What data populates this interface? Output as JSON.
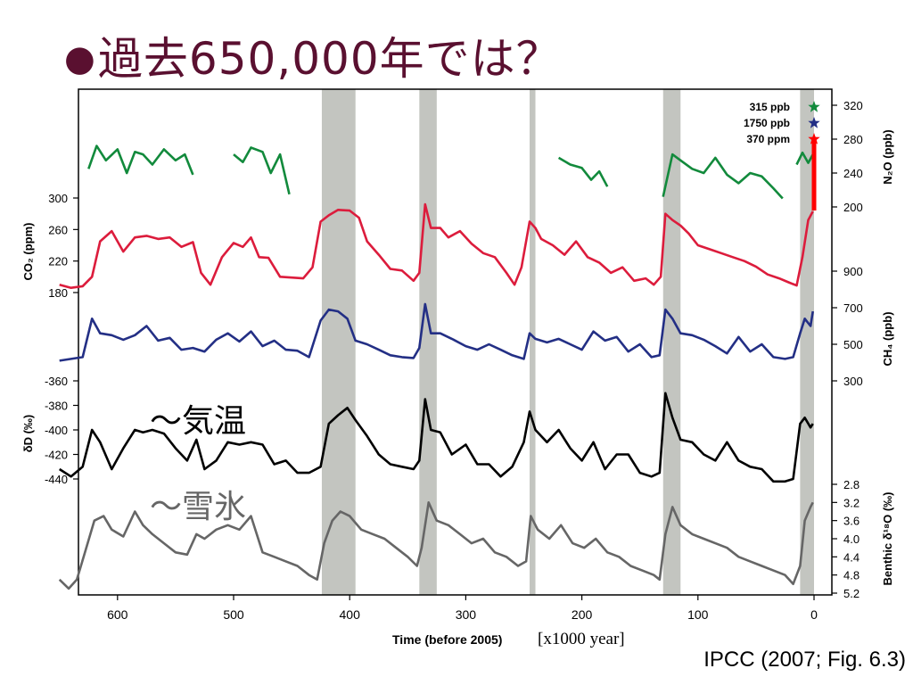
{
  "slide": {
    "bullet": "●",
    "title": "過去650,000年では？",
    "citation": "IPCC (2007; Fig. 6.3)",
    "annotation_temperature": "～気温",
    "annotation_ice": "～雪氷"
  },
  "colors": {
    "title": "#5a1030",
    "n2o": "#128a3c",
    "co2": "#dc1c3c",
    "ch4": "#232f85",
    "dD": "#000000",
    "d18O": "#666666",
    "interglacial_band": "#c3c5c0",
    "modern_marker": "#ff0000"
  },
  "chart_data": {
    "type": "line",
    "x_axis": {
      "label": "Time (before 2005)",
      "unit_note": "[x1000 year]",
      "range": [
        650,
        0
      ],
      "ticks": [
        "600",
        "500",
        "400",
        "300",
        "200",
        "100",
        "0"
      ]
    },
    "interglacial_bands_kyr": [
      [
        424,
        395
      ],
      [
        340,
        325
      ],
      [
        245,
        240
      ],
      [
        130,
        115
      ],
      [
        12,
        0
      ]
    ],
    "modern_values": [
      {
        "label": "315 ppb",
        "series": "N2O",
        "color": "#128a3c"
      },
      {
        "label": "1750 ppb",
        "series": "CH4",
        "color": "#232f85"
      },
      {
        "label": "370 ppm",
        "series": "CO2",
        "color": "#ff0000"
      }
    ],
    "series": [
      {
        "name": "N2O",
        "axis_label": "N₂O (ppb)",
        "axis_side": "right",
        "ticks": [
          "320",
          "280",
          "240",
          "200"
        ],
        "ylim": [
          200,
          320
        ],
        "segments": [
          {
            "x": [
              625,
              618,
              610,
              600,
              592,
              585,
              578,
              570,
              560,
              550,
              542,
              535
            ],
            "y": [
              245,
              272,
              255,
              268,
              240,
              265,
              262,
              250,
              268,
              255,
              262,
              238
            ]
          },
          {
            "x": [
              500,
              492,
              485,
              475,
              468,
              460,
              452
            ],
            "y": [
              262,
              253,
              270,
              265,
              240,
              262,
              215
            ]
          },
          {
            "x": [
              220,
              210,
              200,
              192,
              185,
              178
            ],
            "y": [
              258,
              250,
              246,
              232,
              242,
              224
            ]
          },
          {
            "x": [
              130,
              122,
              115,
              105,
              95,
              85,
              75,
              65,
              55,
              45,
              35,
              27
            ],
            "y": [
              212,
              262,
              255,
              245,
              240,
              258,
              238,
              228,
              240,
              236,
              222,
              210
            ]
          },
          {
            "x": [
              15,
              10,
              5,
              1
            ],
            "y": [
              250,
              264,
              252,
              262
            ]
          }
        ]
      },
      {
        "name": "CO2",
        "axis_label": "CO₂ (ppm)",
        "axis_side": "left",
        "ticks": [
          "300",
          "260",
          "220",
          "180"
        ],
        "ylim": [
          180,
          300
        ],
        "x": [
          650,
          640,
          630,
          622,
          615,
          605,
          595,
          585,
          575,
          565,
          555,
          545,
          535,
          528,
          520,
          510,
          500,
          492,
          485,
          478,
          470,
          460,
          450,
          440,
          432,
          425,
          418,
          410,
          400,
          392,
          385,
          375,
          365,
          355,
          345,
          340,
          335,
          330,
          322,
          315,
          305,
          295,
          285,
          275,
          265,
          258,
          252,
          245,
          240,
          235,
          225,
          215,
          205,
          195,
          185,
          175,
          165,
          155,
          145,
          138,
          132,
          128,
          122,
          115,
          108,
          100,
          90,
          80,
          70,
          60,
          50,
          40,
          30,
          22,
          15,
          10,
          5,
          1
        ],
        "y": [
          190,
          186,
          188,
          200,
          245,
          258,
          232,
          250,
          252,
          248,
          250,
          238,
          244,
          205,
          190,
          225,
          243,
          238,
          250,
          225,
          224,
          200,
          199,
          198,
          212,
          270,
          278,
          285,
          284,
          275,
          245,
          228,
          210,
          208,
          195,
          205,
          292,
          262,
          262,
          250,
          258,
          242,
          230,
          225,
          205,
          190,
          212,
          270,
          262,
          248,
          240,
          228,
          245,
          225,
          218,
          205,
          212,
          195,
          198,
          190,
          200,
          280,
          272,
          265,
          255,
          240,
          235,
          230,
          225,
          220,
          213,
          203,
          198,
          193,
          189,
          225,
          272,
          283
        ]
      },
      {
        "name": "CH4",
        "axis_label": "CH₄ (ppb)",
        "axis_side": "right",
        "ticks": [
          "900",
          "700",
          "500",
          "300"
        ],
        "ylim": [
          300,
          900
        ],
        "x": [
          650,
          640,
          630,
          622,
          615,
          605,
          595,
          585,
          575,
          565,
          555,
          545,
          535,
          525,
          515,
          505,
          495,
          485,
          475,
          465,
          455,
          445,
          435,
          425,
          418,
          410,
          402,
          395,
          385,
          375,
          365,
          355,
          345,
          340,
          335,
          330,
          322,
          312,
          300,
          290,
          280,
          270,
          260,
          250,
          245,
          240,
          230,
          220,
          210,
          200,
          190,
          180,
          170,
          160,
          150,
          140,
          133,
          128,
          122,
          115,
          105,
          95,
          85,
          75,
          65,
          55,
          45,
          35,
          25,
          18,
          12,
          8,
          3,
          1
        ],
        "y": [
          410,
          420,
          430,
          640,
          560,
          550,
          525,
          550,
          600,
          520,
          535,
          470,
          480,
          460,
          525,
          560,
          515,
          570,
          490,
          520,
          470,
          465,
          430,
          630,
          690,
          680,
          640,
          520,
          500,
          470,
          440,
          430,
          425,
          480,
          720,
          560,
          560,
          530,
          490,
          470,
          500,
          470,
          440,
          420,
          560,
          530,
          510,
          530,
          500,
          470,
          570,
          520,
          540,
          460,
          500,
          430,
          440,
          690,
          640,
          560,
          550,
          525,
          490,
          450,
          540,
          460,
          500,
          430,
          420,
          430,
          560,
          640,
          600,
          680
        ]
      },
      {
        "name": "δD",
        "axis_label": "δD (‰)",
        "axis_side": "left",
        "ticks": [
          "-360",
          "-380",
          "-400",
          "-420",
          "-440"
        ],
        "ylim": [
          -440,
          -360
        ],
        "x": [
          650,
          640,
          630,
          622,
          615,
          605,
          595,
          585,
          578,
          570,
          560,
          550,
          540,
          532,
          525,
          515,
          505,
          495,
          485,
          475,
          465,
          455,
          445,
          435,
          425,
          418,
          410,
          402,
          395,
          385,
          375,
          365,
          355,
          345,
          340,
          335,
          330,
          322,
          312,
          300,
          290,
          280,
          270,
          260,
          250,
          245,
          240,
          230,
          220,
          210,
          200,
          190,
          180,
          170,
          160,
          150,
          140,
          133,
          128,
          122,
          115,
          105,
          95,
          85,
          75,
          65,
          55,
          45,
          35,
          25,
          18,
          12,
          8,
          3,
          1
        ],
        "y": [
          -432,
          -438,
          -430,
          -400,
          -410,
          -432,
          -415,
          -400,
          -402,
          -400,
          -403,
          -415,
          -425,
          -408,
          -432,
          -425,
          -410,
          -412,
          -410,
          -412,
          -428,
          -425,
          -435,
          -435,
          -430,
          -395,
          -388,
          -382,
          -392,
          -405,
          -420,
          -428,
          -430,
          -432,
          -425,
          -375,
          -400,
          -402,
          -420,
          -412,
          -428,
          -428,
          -438,
          -430,
          -410,
          -385,
          -400,
          -410,
          -400,
          -415,
          -425,
          -410,
          -432,
          -420,
          -420,
          -435,
          -438,
          -435,
          -370,
          -390,
          -408,
          -410,
          -420,
          -425,
          -410,
          -425,
          -430,
          -432,
          -442,
          -442,
          -440,
          -395,
          -390,
          -398,
          -395
        ]
      },
      {
        "name": "Benthic δ18O",
        "axis_label": "Benthic δ¹⁸O (‰)",
        "axis_side": "right",
        "ticks": [
          "2.8",
          "3.2",
          "3.6",
          "4.0",
          "4.4",
          "4.8",
          "5.2"
        ],
        "ylim": [
          5.2,
          2.8
        ],
        "x": [
          650,
          642,
          635,
          628,
          620,
          612,
          605,
          595,
          585,
          578,
          570,
          560,
          550,
          540,
          532,
          525,
          515,
          505,
          495,
          485,
          475,
          465,
          455,
          445,
          435,
          428,
          422,
          415,
          408,
          400,
          390,
          380,
          370,
          360,
          350,
          342,
          338,
          332,
          325,
          315,
          305,
          295,
          285,
          275,
          265,
          255,
          248,
          244,
          238,
          228,
          218,
          208,
          198,
          188,
          178,
          168,
          158,
          148,
          138,
          133,
          128,
          122,
          115,
          105,
          95,
          85,
          75,
          65,
          55,
          45,
          35,
          25,
          18,
          12,
          8,
          3,
          1
        ],
        "y": [
          4.9,
          5.1,
          4.9,
          4.3,
          3.6,
          3.5,
          3.8,
          3.95,
          3.4,
          3.7,
          3.9,
          4.1,
          4.3,
          4.35,
          3.9,
          4.0,
          3.8,
          3.7,
          3.8,
          3.5,
          4.3,
          4.4,
          4.5,
          4.6,
          4.8,
          4.9,
          4.1,
          3.6,
          3.4,
          3.5,
          3.8,
          3.9,
          4.0,
          4.2,
          4.4,
          4.6,
          4.2,
          3.2,
          3.6,
          3.7,
          3.9,
          4.1,
          4.0,
          4.3,
          4.4,
          4.6,
          4.5,
          3.5,
          3.8,
          4.0,
          3.7,
          4.1,
          4.2,
          4.0,
          4.3,
          4.4,
          4.6,
          4.7,
          4.8,
          4.9,
          3.9,
          3.3,
          3.7,
          3.9,
          4.0,
          4.1,
          4.2,
          4.4,
          4.5,
          4.6,
          4.7,
          4.8,
          5.0,
          4.6,
          3.6,
          3.3,
          3.2
        ]
      }
    ]
  }
}
